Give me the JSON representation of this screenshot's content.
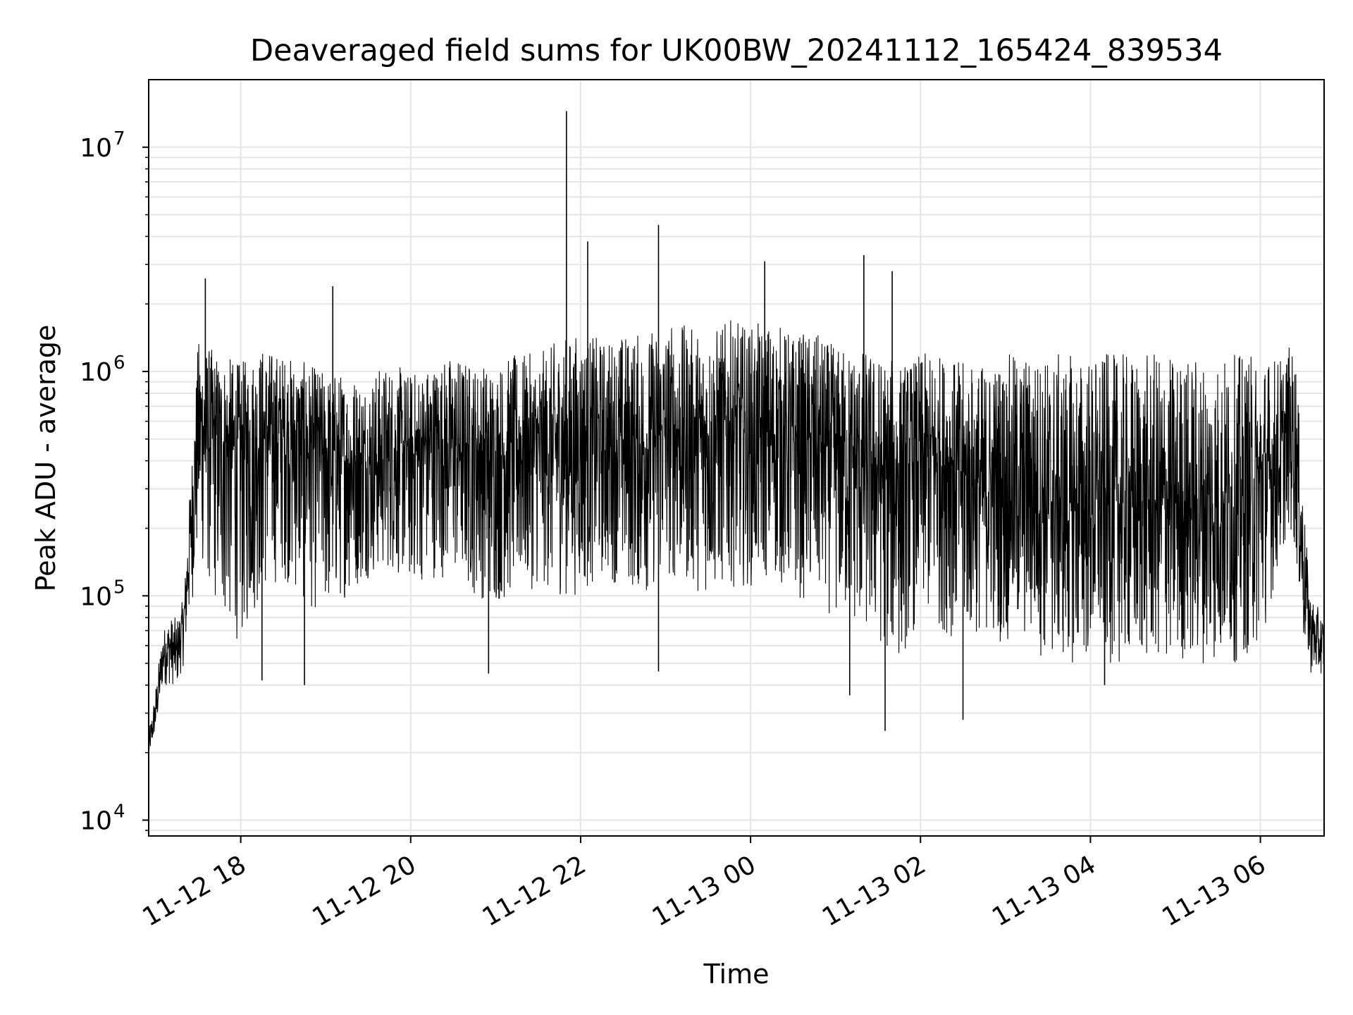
{
  "chart_data": {
    "type": "line",
    "title": "Deaveraged field sums for UK00BW_20241112_165424_839534",
    "xlabel": "Time",
    "ylabel": "Peak ADU - average",
    "yscale": "log",
    "ylim": [
      8500,
      20000000
    ],
    "xlim": [
      "2024-11-12 16:55",
      "2024-11-13 06:45"
    ],
    "grid": true,
    "legend": "none",
    "x_ticks": [
      {
        "t": "2024-11-12 18:00",
        "label": "11-12 18"
      },
      {
        "t": "2024-11-12 20:00",
        "label": "11-12 20"
      },
      {
        "t": "2024-11-12 22:00",
        "label": "11-12 22"
      },
      {
        "t": "2024-11-13 00:00",
        "label": "11-13 00"
      },
      {
        "t": "2024-11-13 02:00",
        "label": "11-13 02"
      },
      {
        "t": "2024-11-13 04:00",
        "label": "11-13 04"
      },
      {
        "t": "2024-11-13 06:00",
        "label": "11-13 06"
      }
    ],
    "y_ticks": [
      {
        "value": 10000,
        "base": "10",
        "exp": "4"
      },
      {
        "value": 100000,
        "base": "10",
        "exp": "5"
      },
      {
        "value": 1000000,
        "base": "10",
        "exp": "6"
      },
      {
        "value": 10000000,
        "base": "10",
        "exp": "7"
      }
    ],
    "line_color": "#000000",
    "grid_color": "#e5e5e5",
    "series": [
      {
        "x": [
          "2024-11-12 16:55",
          "2024-11-12 17:00",
          "2024-11-12 17:05",
          "2024-11-12 17:10",
          "2024-11-12 17:15",
          "2024-11-12 17:20",
          "2024-11-12 17:30",
          "2024-11-12 17:45",
          "2024-11-12 18:00",
          "2024-11-12 18:15",
          "2024-11-12 18:30",
          "2024-11-12 18:45",
          "2024-11-12 19:00",
          "2024-11-12 19:15",
          "2024-11-12 19:30",
          "2024-11-12 19:45",
          "2024-11-12 20:00",
          "2024-11-12 20:15",
          "2024-11-12 20:30",
          "2024-11-12 20:45",
          "2024-11-12 21:00",
          "2024-11-12 21:15",
          "2024-11-12 21:30",
          "2024-11-12 21:45",
          "2024-11-12 22:00",
          "2024-11-12 22:15",
          "2024-11-12 22:30",
          "2024-11-12 22:45",
          "2024-11-12 23:00",
          "2024-11-12 23:15",
          "2024-11-12 23:30",
          "2024-11-12 23:45",
          "2024-11-13 00:00",
          "2024-11-13 00:15",
          "2024-11-13 00:30",
          "2024-11-13 00:45",
          "2024-11-13 01:00",
          "2024-11-13 01:15",
          "2024-11-13 01:30",
          "2024-11-13 01:45",
          "2024-11-13 02:00",
          "2024-11-13 02:15",
          "2024-11-13 02:30",
          "2024-11-13 02:45",
          "2024-11-13 03:00",
          "2024-11-13 03:15",
          "2024-11-13 03:30",
          "2024-11-13 03:45",
          "2024-11-13 04:00",
          "2024-11-13 04:15",
          "2024-11-13 04:30",
          "2024-11-13 04:45",
          "2024-11-13 05:00",
          "2024-11-13 05:15",
          "2024-11-13 05:30",
          "2024-11-13 05:45",
          "2024-11-13 06:00",
          "2024-11-13 06:15",
          "2024-11-13 06:20",
          "2024-11-13 06:25",
          "2024-11-13 06:30",
          "2024-11-13 06:35",
          "2024-11-13 06:40",
          "2024-11-13 06:45"
        ],
        "y": [
          20000,
          30000,
          55000,
          60000,
          55000,
          80000,
          600000,
          500000,
          450000,
          550000,
          550000,
          500000,
          450000,
          400000,
          380000,
          450000,
          420000,
          480000,
          500000,
          450000,
          420000,
          480000,
          450000,
          500000,
          520000,
          480000,
          500000,
          450000,
          550000,
          550000,
          500000,
          600000,
          500000,
          520000,
          480000,
          500000,
          450000,
          420000,
          380000,
          350000,
          400000,
          450000,
          350000,
          300000,
          320000,
          350000,
          300000,
          250000,
          250000,
          260000,
          240000,
          250000,
          260000,
          240000,
          250000,
          260000,
          300000,
          400000,
          600000,
          500000,
          150000,
          80000,
          60000,
          60000
        ],
        "band_low": [
          20000,
          25000,
          40000,
          40000,
          40000,
          50000,
          150000,
          80000,
          60000,
          100000,
          120000,
          90000,
          80000,
          100000,
          120000,
          130000,
          110000,
          120000,
          120000,
          100000,
          90000,
          100000,
          110000,
          100000,
          100000,
          120000,
          110000,
          100000,
          120000,
          110000,
          100000,
          110000,
          110000,
          120000,
          100000,
          90000,
          80000,
          70000,
          60000,
          50000,
          80000,
          70000,
          60000,
          70000,
          60000,
          60000,
          50000,
          50000,
          50000,
          50000,
          50000,
          50000,
          50000,
          50000,
          50000,
          50000,
          60000,
          150000,
          200000,
          150000,
          60000,
          45000,
          45000,
          45000
        ],
        "band_high": [
          25000,
          40000,
          70000,
          80000,
          80000,
          100000,
          1400000,
          1200000,
          1100000,
          1300000,
          1200000,
          1100000,
          1000000,
          1000000,
          1000000,
          1100000,
          1000000,
          1100000,
          1200000,
          1100000,
          1100000,
          1200000,
          1200000,
          1400000,
          1500000,
          1400000,
          1500000,
          1500000,
          1700000,
          1600000,
          1500000,
          1700000,
          1600000,
          1700000,
          1500000,
          1500000,
          1300000,
          1300000,
          1200000,
          1100000,
          1200000,
          1200000,
          1100000,
          1100000,
          1200000,
          1200000,
          1200000,
          1200000,
          1200000,
          1200000,
          1200000,
          1200000,
          1200000,
          1200000,
          1200000,
          1200000,
          1200000,
          1200000,
          1300000,
          1200000,
          300000,
          100000,
          90000,
          80000
        ]
      }
    ],
    "peaks": [
      {
        "t": "2024-11-12 17:35",
        "value": 2600000
      },
      {
        "t": "2024-11-12 19:05",
        "value": 2400000
      },
      {
        "t": "2024-11-12 21:50",
        "value": 14500000
      },
      {
        "t": "2024-11-12 22:05",
        "value": 3800000
      },
      {
        "t": "2024-11-12 22:55",
        "value": 4500000
      },
      {
        "t": "2024-11-13 00:10",
        "value": 3100000
      },
      {
        "t": "2024-11-13 01:20",
        "value": 3300000
      },
      {
        "t": "2024-11-13 01:40",
        "value": 2800000
      }
    ],
    "dips": [
      {
        "t": "2024-11-12 18:15",
        "value": 42000
      },
      {
        "t": "2024-11-12 18:45",
        "value": 40000
      },
      {
        "t": "2024-11-12 20:55",
        "value": 45000
      },
      {
        "t": "2024-11-12 22:55",
        "value": 46000
      },
      {
        "t": "2024-11-13 01:10",
        "value": 36000
      },
      {
        "t": "2024-11-13 01:35",
        "value": 25000
      },
      {
        "t": "2024-11-13 02:30",
        "value": 28000
      },
      {
        "t": "2024-11-13 04:10",
        "value": 40000
      }
    ]
  }
}
